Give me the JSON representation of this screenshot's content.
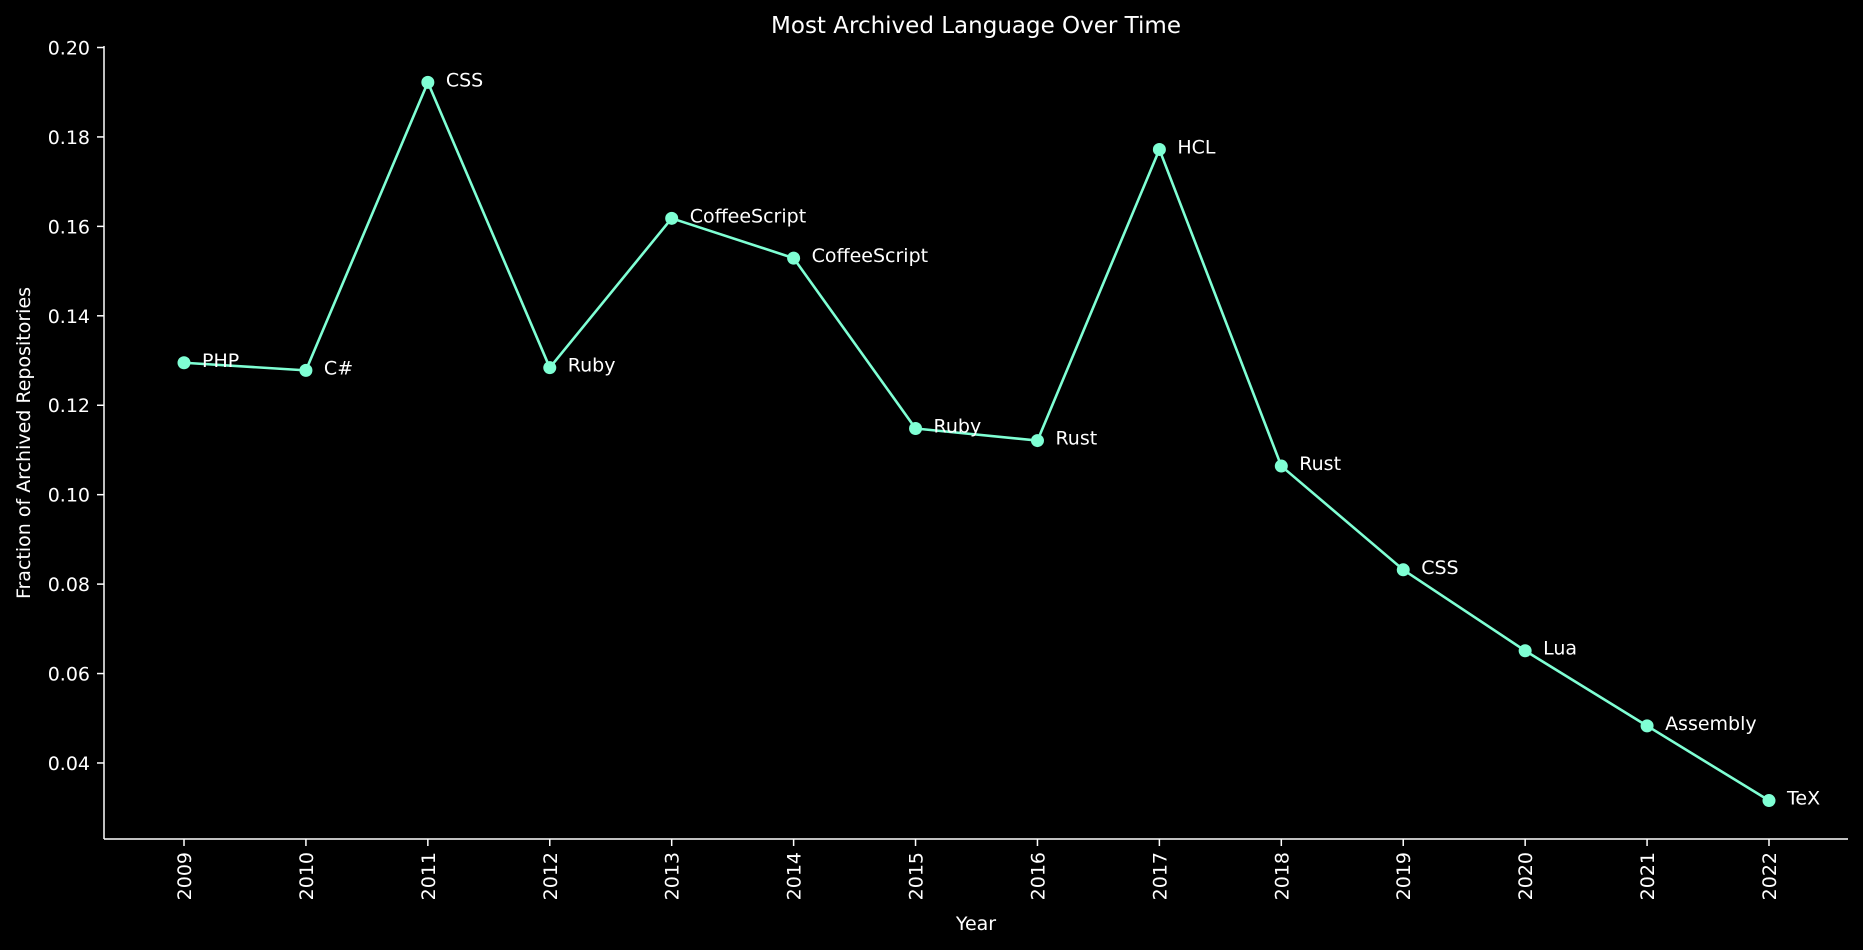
{
  "chart_data": {
    "type": "line",
    "title": "Most Archived Language Over Time",
    "xlabel": "Year",
    "ylabel": "Fraction of Archived Repositories",
    "x": [
      "2009",
      "2010",
      "2011",
      "2012",
      "2013",
      "2014",
      "2015",
      "2016",
      "2017",
      "2018",
      "2019",
      "2020",
      "2021",
      "2022"
    ],
    "series": [
      {
        "values": [
          0.1295,
          0.1278,
          0.1922,
          0.1284,
          0.1618,
          0.1529,
          0.1148,
          0.1121,
          0.1772,
          0.1064,
          0.0832,
          0.0651,
          0.0483,
          0.0316
        ],
        "point_labels": [
          "PHP",
          "C#",
          "CSS",
          "Ruby",
          "CoffeeScript",
          "CoffeeScript",
          "Ruby",
          "Rust",
          "HCL",
          "Rust",
          "CSS",
          "Lua",
          "Assembly",
          "TeX"
        ],
        "color": "#7fffd4"
      }
    ],
    "ylim": [
      0.023,
      0.2
    ],
    "yticks": [
      0.04,
      0.06,
      0.08,
      0.1,
      0.12,
      0.14,
      0.16,
      0.18,
      0.2
    ],
    "ytick_labels": [
      "0.04",
      "0.06",
      "0.08",
      "0.10",
      "0.12",
      "0.14",
      "0.16",
      "0.18",
      "0.20"
    ],
    "grid": false,
    "legend": "none",
    "background": "#000000",
    "foreground": "#ffffff"
  }
}
